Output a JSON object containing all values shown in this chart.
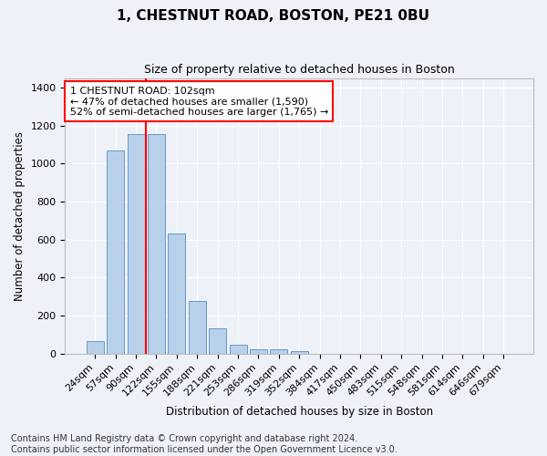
{
  "title": "1, CHESTNUT ROAD, BOSTON, PE21 0BU",
  "subtitle": "Size of property relative to detached houses in Boston",
  "xlabel": "Distribution of detached houses by size in Boston",
  "ylabel": "Number of detached properties",
  "categories": [
    "24sqm",
    "57sqm",
    "90sqm",
    "122sqm",
    "155sqm",
    "188sqm",
    "221sqm",
    "253sqm",
    "286sqm",
    "319sqm",
    "352sqm",
    "384sqm",
    "417sqm",
    "450sqm",
    "483sqm",
    "515sqm",
    "548sqm",
    "581sqm",
    "614sqm",
    "646sqm",
    "679sqm"
  ],
  "values": [
    65,
    1070,
    1155,
    1155,
    630,
    275,
    130,
    45,
    20,
    20,
    10,
    0,
    0,
    0,
    0,
    0,
    0,
    0,
    0,
    0,
    0
  ],
  "bar_color": "#b8d0ea",
  "bar_edge_color": "#6699cc",
  "vline_color": "red",
  "vline_x": 2.5,
  "annotation_text": "1 CHESTNUT ROAD: 102sqm\n← 47% of detached houses are smaller (1,590)\n52% of semi-detached houses are larger (1,765) →",
  "annotation_box_color": "white",
  "annotation_box_edge": "red",
  "ylim": [
    0,
    1450
  ],
  "yticks": [
    0,
    200,
    400,
    600,
    800,
    1000,
    1200,
    1400
  ],
  "footer": "Contains HM Land Registry data © Crown copyright and database right 2024.\nContains public sector information licensed under the Open Government Licence v3.0.",
  "background_color": "#eef2f8",
  "plot_background": "#eef2f8",
  "title_fontsize": 11,
  "subtitle_fontsize": 9,
  "xlabel_fontsize": 8.5,
  "ylabel_fontsize": 8.5,
  "tick_fontsize": 8,
  "footer_fontsize": 7,
  "annotation_fontsize": 8
}
